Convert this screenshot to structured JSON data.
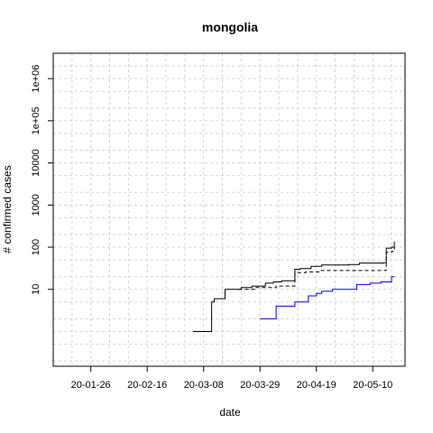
{
  "chart_data": {
    "type": "line",
    "title": "mongolia",
    "xlabel": "date",
    "ylabel": "# confirmed cases",
    "x_axis": "date",
    "xlim": [
      "2020-01-12",
      "2020-05-22"
    ],
    "ylog": true,
    "ylim": [
      0.15,
      4000000
    ],
    "grid": true,
    "x_ticks": [
      {
        "date": "2020-01-26",
        "label": "20-01-26"
      },
      {
        "date": "2020-02-16",
        "label": "20-02-16"
      },
      {
        "date": "2020-03-08",
        "label": "20-03-08"
      },
      {
        "date": "2020-03-29",
        "label": "20-03-29"
      },
      {
        "date": "2020-04-19",
        "label": "20-04-19"
      },
      {
        "date": "2020-05-10",
        "label": "20-05-10"
      }
    ],
    "y_ticks": [
      {
        "value": 10,
        "label": "10"
      },
      {
        "value": 100,
        "label": "100"
      },
      {
        "value": 1000,
        "label": "1000"
      },
      {
        "value": 10000,
        "label": "10000"
      },
      {
        "value": 100000,
        "label": "1e+05"
      },
      {
        "value": 1000000,
        "label": "1e+06"
      }
    ],
    "series": [
      {
        "color": "#000000",
        "dash": "solid",
        "points": [
          [
            "2020-03-04",
            1
          ],
          [
            "2020-03-10",
            1
          ],
          [
            "2020-03-11",
            5
          ],
          [
            "2020-03-12",
            6
          ],
          [
            "2020-03-15",
            6
          ],
          [
            "2020-03-16",
            10
          ],
          [
            "2020-03-21",
            10
          ],
          [
            "2020-03-22",
            11
          ],
          [
            "2020-03-26",
            12
          ],
          [
            "2020-03-31",
            14
          ],
          [
            "2020-04-03",
            15
          ],
          [
            "2020-04-06",
            16
          ],
          [
            "2020-04-10",
            16
          ],
          [
            "2020-04-11",
            30
          ],
          [
            "2020-04-13",
            31
          ],
          [
            "2020-04-17",
            35
          ],
          [
            "2020-04-21",
            38
          ],
          [
            "2020-05-01",
            39
          ],
          [
            "2020-05-05",
            42
          ],
          [
            "2020-05-14",
            43
          ],
          [
            "2020-05-15",
            95
          ],
          [
            "2020-05-17",
            100
          ],
          [
            "2020-05-18",
            135
          ]
        ]
      },
      {
        "color": "#000000",
        "dash": "dashed",
        "points": [
          [
            "2020-03-21",
            10
          ],
          [
            "2020-03-27",
            11
          ],
          [
            "2020-04-02",
            11
          ],
          [
            "2020-04-04",
            12
          ],
          [
            "2020-04-10",
            12
          ],
          [
            "2020-04-11",
            25
          ],
          [
            "2020-04-15",
            26
          ],
          [
            "2020-04-20",
            28
          ],
          [
            "2020-05-05",
            28
          ],
          [
            "2020-05-14",
            28
          ],
          [
            "2020-05-15",
            75
          ],
          [
            "2020-05-17",
            80
          ],
          [
            "2020-05-18",
            100
          ]
        ]
      },
      {
        "color": "#0000ff",
        "dash": "solid",
        "points": [
          [
            "2020-03-29",
            2
          ],
          [
            "2020-04-03",
            2
          ],
          [
            "2020-04-04",
            4
          ],
          [
            "2020-04-10",
            4
          ],
          [
            "2020-04-11",
            5
          ],
          [
            "2020-04-15",
            5
          ],
          [
            "2020-04-16",
            7
          ],
          [
            "2020-04-19",
            8
          ],
          [
            "2020-04-21",
            9
          ],
          [
            "2020-04-25",
            10
          ],
          [
            "2020-05-03",
            10
          ],
          [
            "2020-05-04",
            13
          ],
          [
            "2020-05-08",
            13
          ],
          [
            "2020-05-09",
            14
          ],
          [
            "2020-05-13",
            15
          ],
          [
            "2020-05-16",
            15
          ],
          [
            "2020-05-17",
            20
          ],
          [
            "2020-05-18",
            20
          ]
        ]
      }
    ]
  }
}
